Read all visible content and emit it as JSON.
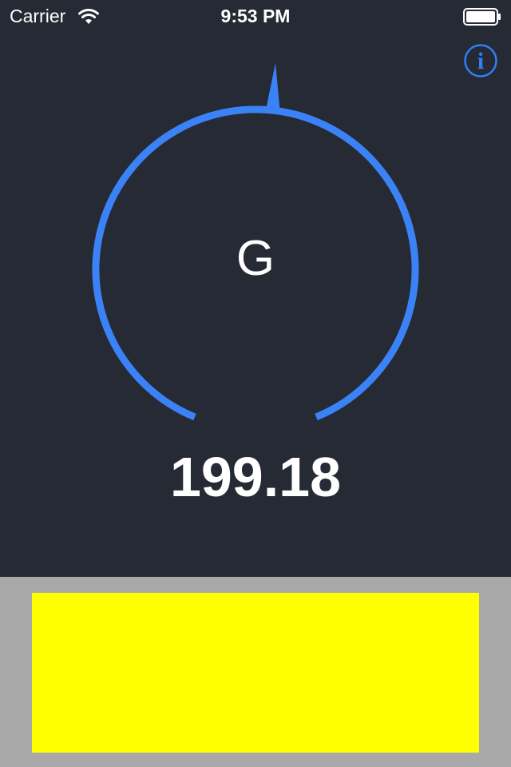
{
  "status_bar": {
    "carrier": "Carrier",
    "time": "9:53 PM",
    "wifi_icon": "wifi-icon",
    "battery_icon": "battery-icon"
  },
  "info_button": {
    "icon": "info-icon",
    "glyph": "i"
  },
  "gauge": {
    "letter": "G",
    "reading": "199.18",
    "accent_color": "#3b82f6",
    "pointer_icon": "needle-pointer"
  },
  "ad_banner": {
    "color": "#ffff00",
    "panel_color": "#a9a9a9"
  },
  "colors": {
    "background": "#252a34",
    "text": "#ffffff"
  }
}
